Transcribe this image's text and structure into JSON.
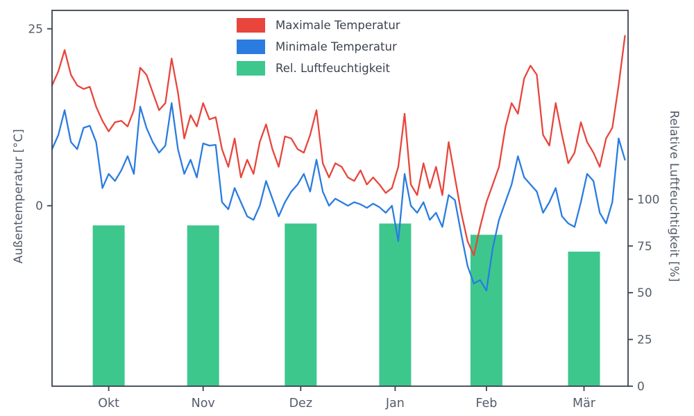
{
  "chart_data": {
    "type": "line+bar",
    "x_axis": {
      "months": [
        "Okt",
        "Nov",
        "Dez",
        "Jan",
        "Feb",
        "Mär"
      ],
      "month_day_index": [
        18,
        48,
        79,
        109,
        138,
        169
      ],
      "days_total": 183
    },
    "left_axis": {
      "label": "Außentemperatur [°C]",
      "ticks": [
        0,
        25
      ],
      "range": [
        -25.5,
        27.6
      ]
    },
    "right_axis": {
      "label": "Relative Luftfeuchtigkeit [%]",
      "ticks": [
        0,
        25,
        50,
        75,
        100
      ],
      "range": [
        0,
        201
      ]
    },
    "series": [
      {
        "name": "Maximale Temperatur",
        "type": "line",
        "axis": "left",
        "color": "#e8453c",
        "step_days": 2,
        "values": [
          17,
          19,
          22,
          18.5,
          17,
          16.5,
          16.8,
          14,
          12,
          10.5,
          11.8,
          12,
          11.2,
          13.5,
          19.5,
          18.5,
          16,
          13.5,
          14.5,
          20.8,
          16,
          9.5,
          12.8,
          11.2,
          14.5,
          12.2,
          12.5,
          8,
          5.5,
          9.5,
          4,
          6.5,
          4.5,
          9,
          11.5,
          8,
          5.5,
          9.8,
          9.5,
          8,
          7.5,
          10,
          13.5,
          6,
          4,
          6,
          5.5,
          4,
          3.5,
          5,
          3,
          4,
          3,
          1.8,
          2.5,
          5.5,
          13,
          3,
          1.5,
          6,
          2.5,
          5.5,
          1.5,
          9,
          4,
          -1,
          -5,
          -7,
          -3,
          0.5,
          3,
          5.5,
          11,
          14.5,
          13,
          18,
          19.8,
          18.5,
          10,
          8.5,
          14.5,
          10,
          6,
          7.5,
          11.8,
          9,
          7.5,
          5.5,
          9.5,
          11,
          17,
          24
        ]
      },
      {
        "name": "Minimale Temperatur",
        "type": "line",
        "axis": "left",
        "color": "#2a7ce0",
        "step_days": 2,
        "values": [
          8,
          10,
          13.5,
          9,
          8,
          11,
          11.3,
          9,
          2.5,
          4.5,
          3.5,
          5,
          7,
          4.5,
          14,
          11,
          9,
          7.5,
          8.5,
          14.5,
          8,
          4.5,
          6.5,
          4,
          8.8,
          8.5,
          8.6,
          0.5,
          -0.5,
          2.5,
          0.5,
          -1.5,
          -2,
          0,
          3.5,
          1,
          -1.5,
          0.5,
          2,
          3,
          4.5,
          2,
          6.5,
          2,
          0,
          1,
          0.5,
          0,
          0.5,
          0.2,
          -0.3,
          0.3,
          -0.2,
          -1,
          0,
          -5,
          4.5,
          0,
          -1,
          0.5,
          -2,
          -1,
          -3,
          1.5,
          0.8,
          -4,
          -8.5,
          -11,
          -10.5,
          -12,
          -6,
          -2,
          0.5,
          3,
          7,
          4,
          3,
          2,
          -1,
          0.5,
          2.5,
          -1.5,
          -2.5,
          -3,
          0.5,
          4.5,
          3.5,
          -1,
          -2.5,
          0.5,
          9.5,
          6.5
        ]
      },
      {
        "name": "Rel. Luftfeuchtigkeit",
        "type": "bar",
        "axis": "right",
        "color": "#3dc78d",
        "categories": [
          "Okt",
          "Nov",
          "Dez",
          "Jan",
          "Feb",
          "Mär"
        ],
        "values": [
          86,
          86,
          87,
          87,
          81,
          72
        ]
      }
    ],
    "legend": {
      "position": "upper-center-left",
      "entries": [
        "Maximale Temperatur",
        "Minimale Temperatur",
        "Rel. Luftfeuchtigkeit"
      ]
    },
    "grid": false
  },
  "colors": {
    "red": "#e8453c",
    "blue": "#2a7ce0",
    "green": "#3dc78d",
    "spine": "#3a4150",
    "tick_text": "#555d6b",
    "background": "#ffffff"
  }
}
